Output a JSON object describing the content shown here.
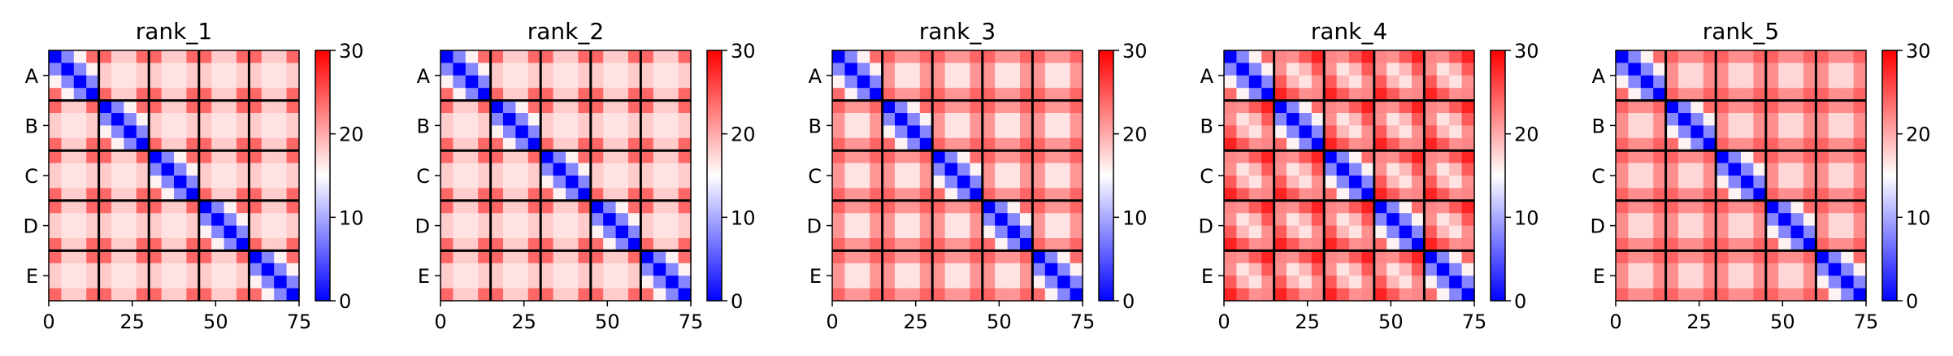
{
  "chart_data": [
    {
      "type": "heatmap",
      "title": "rank_1",
      "xlabel": "",
      "ylabel": "",
      "xlim": [
        0,
        75
      ],
      "ylim": [
        0,
        75
      ],
      "x_ticks": [
        0,
        25,
        50,
        75
      ],
      "y_tick_labels": [
        "A",
        "B",
        "C",
        "D",
        "E"
      ],
      "n_blocks": 5,
      "block_size": 15,
      "colorbar": {
        "vmin": 0,
        "vmax": 30,
        "ticks": [
          0,
          10,
          20,
          30
        ],
        "colormap": "bwr"
      },
      "diagonal_min": 0,
      "off_block_center": 13,
      "off_block_edge": 24,
      "pattern": "cross"
    },
    {
      "type": "heatmap",
      "title": "rank_2",
      "xlabel": "",
      "ylabel": "",
      "xlim": [
        0,
        75
      ],
      "ylim": [
        0,
        75
      ],
      "x_ticks": [
        0,
        25,
        50,
        75
      ],
      "y_tick_labels": [
        "A",
        "B",
        "C",
        "D",
        "E"
      ],
      "n_blocks": 5,
      "block_size": 15,
      "colorbar": {
        "vmin": 0,
        "vmax": 30,
        "ticks": [
          0,
          10,
          20,
          30
        ],
        "colormap": "bwr"
      },
      "diagonal_min": 0,
      "off_block_center": 13,
      "off_block_edge": 24,
      "pattern": "cross"
    },
    {
      "type": "heatmap",
      "title": "rank_3",
      "xlabel": "",
      "ylabel": "",
      "xlim": [
        0,
        75
      ],
      "ylim": [
        0,
        75
      ],
      "x_ticks": [
        0,
        25,
        50,
        75
      ],
      "y_tick_labels": [
        "A",
        "B",
        "C",
        "D",
        "E"
      ],
      "n_blocks": 5,
      "block_size": 15,
      "colorbar": {
        "vmin": 0,
        "vmax": 30,
        "ticks": [
          0,
          10,
          20,
          30
        ],
        "colormap": "bwr"
      },
      "diagonal_min": 0,
      "off_block_center": 13,
      "off_block_edge": 26,
      "pattern": "blob"
    },
    {
      "type": "heatmap",
      "title": "rank_4",
      "xlabel": "",
      "ylabel": "",
      "xlim": [
        0,
        75
      ],
      "ylim": [
        0,
        75
      ],
      "x_ticks": [
        0,
        25,
        50,
        75
      ],
      "y_tick_labels": [
        "A",
        "B",
        "C",
        "D",
        "E"
      ],
      "n_blocks": 5,
      "block_size": 15,
      "colorbar": {
        "vmin": 0,
        "vmax": 30,
        "ticks": [
          0,
          10,
          20,
          30
        ],
        "colormap": "bwr"
      },
      "diagonal_min": 0,
      "off_block_center": 14,
      "off_block_edge": 28,
      "pattern": "diag-blob"
    },
    {
      "type": "heatmap",
      "title": "rank_5",
      "xlabel": "",
      "ylabel": "",
      "xlim": [
        0,
        75
      ],
      "ylim": [
        0,
        75
      ],
      "x_ticks": [
        0,
        25,
        50,
        75
      ],
      "y_tick_labels": [
        "A",
        "B",
        "C",
        "D",
        "E"
      ],
      "n_blocks": 5,
      "block_size": 15,
      "colorbar": {
        "vmin": 0,
        "vmax": 30,
        "ticks": [
          0,
          10,
          20,
          30
        ],
        "colormap": "bwr"
      },
      "diagonal_min": 0,
      "off_block_center": 14,
      "off_block_edge": 26,
      "pattern": "blob"
    }
  ]
}
